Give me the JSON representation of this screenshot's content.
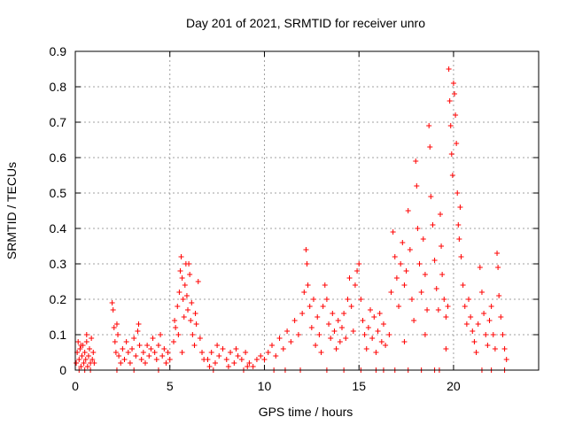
{
  "chart_data": {
    "type": "scatter",
    "title": "Day 201 of 2021, SRMTID for receiver unro",
    "xlabel": "GPS time / hours",
    "ylabel": "SRMTID / TECUs",
    "xlim": [
      0,
      24.5
    ],
    "ylim": [
      0,
      0.9
    ],
    "xticks": [
      0,
      5,
      10,
      15,
      20
    ],
    "xtick_labels": [
      "0",
      "5",
      "10",
      "15",
      "20"
    ],
    "yticks": [
      0,
      0.1,
      0.2,
      0.3,
      0.4,
      0.5,
      0.6,
      0.7,
      0.8,
      0.9
    ],
    "ytick_labels": [
      "0",
      "0.1",
      "0.2",
      "0.3",
      "0.4",
      "0.5",
      "0.6",
      "0.7",
      "0.8",
      "0.9"
    ],
    "grid": true,
    "legend": "none",
    "marker": "plus",
    "series": [
      {
        "name": "SRMTID",
        "color": "#ff0000",
        "points": [
          [
            0.05,
            0.02
          ],
          [
            0.1,
            0.05
          ],
          [
            0.15,
            0.08
          ],
          [
            0.2,
            0.03
          ],
          [
            0.25,
            0.06
          ],
          [
            0.3,
            0.01
          ],
          [
            0.35,
            0.04
          ],
          [
            0.4,
            0.07
          ],
          [
            0.45,
            0.02
          ],
          [
            0.5,
            0.05
          ],
          [
            0.55,
            0.03
          ],
          [
            0.6,
            0.08
          ],
          [
            0.65,
            0.01
          ],
          [
            0.7,
            0.04
          ],
          [
            0.75,
            0.06
          ],
          [
            0.8,
            0.02
          ],
          [
            0.85,
            0.09
          ],
          [
            0.9,
            0.03
          ],
          [
            0.95,
            0.05
          ],
          [
            1.0,
            0.02
          ],
          [
            0.6,
            0.1
          ],
          [
            0.3,
            0.07
          ],
          [
            0.2,
            0.0
          ],
          [
            0.5,
            0.0
          ],
          [
            0.8,
            0.0
          ],
          [
            1.95,
            0.19
          ],
          [
            2.0,
            0.17
          ],
          [
            2.05,
            0.12
          ],
          [
            2.1,
            0.08
          ],
          [
            2.15,
            0.05
          ],
          [
            2.2,
            0.13
          ],
          [
            2.25,
            0.1
          ],
          [
            2.3,
            0.04
          ],
          [
            2.4,
            0.02
          ],
          [
            2.5,
            0.06
          ],
          [
            2.6,
            0.03
          ],
          [
            2.7,
            0.08
          ],
          [
            2.8,
            0.05
          ],
          [
            2.9,
            0.02
          ],
          [
            3.0,
            0.06
          ],
          [
            3.1,
            0.09
          ],
          [
            3.2,
            0.04
          ],
          [
            3.3,
            0.11
          ],
          [
            3.35,
            0.13
          ],
          [
            3.4,
            0.07
          ],
          [
            3.5,
            0.03
          ],
          [
            3.6,
            0.05
          ],
          [
            3.7,
            0.02
          ],
          [
            3.8,
            0.07
          ],
          [
            3.9,
            0.04
          ],
          [
            4.0,
            0.06
          ],
          [
            4.1,
            0.09
          ],
          [
            4.2,
            0.05
          ],
          [
            4.3,
            0.03
          ],
          [
            4.4,
            0.07
          ],
          [
            4.5,
            0.1
          ],
          [
            4.6,
            0.04
          ],
          [
            4.7,
            0.06
          ],
          [
            4.8,
            0.02
          ],
          [
            4.9,
            0.05
          ],
          [
            5.0,
            0.03
          ],
          [
            2.2,
            0.0
          ],
          [
            3.1,
            0.0
          ],
          [
            4.4,
            0.0
          ],
          [
            5.2,
            0.08
          ],
          [
            5.3,
            0.12
          ],
          [
            5.4,
            0.18
          ],
          [
            5.5,
            0.22
          ],
          [
            5.55,
            0.28
          ],
          [
            5.6,
            0.32
          ],
          [
            5.65,
            0.26
          ],
          [
            5.7,
            0.2
          ],
          [
            5.75,
            0.15
          ],
          [
            5.8,
            0.24
          ],
          [
            5.85,
            0.3
          ],
          [
            5.9,
            0.21
          ],
          [
            5.95,
            0.17
          ],
          [
            6.0,
            0.3
          ],
          [
            6.05,
            0.27
          ],
          [
            6.1,
            0.14
          ],
          [
            6.2,
            0.1
          ],
          [
            6.3,
            0.07
          ],
          [
            6.4,
            0.13
          ],
          [
            6.5,
            0.25
          ],
          [
            6.6,
            0.09
          ],
          [
            6.7,
            0.05
          ],
          [
            6.8,
            0.03
          ],
          [
            5.45,
            0.1
          ],
          [
            5.65,
            0.05
          ],
          [
            6.15,
            0.19
          ],
          [
            6.35,
            0.16
          ],
          [
            5.25,
            0.14
          ],
          [
            7.0,
            0.03
          ],
          [
            7.2,
            0.05
          ],
          [
            7.4,
            0.02
          ],
          [
            7.6,
            0.04
          ],
          [
            7.8,
            0.06
          ],
          [
            8.0,
            0.03
          ],
          [
            8.2,
            0.05
          ],
          [
            8.4,
            0.02
          ],
          [
            8.6,
            0.04
          ],
          [
            8.8,
            0.03
          ],
          [
            9.0,
            0.05
          ],
          [
            9.2,
            0.02
          ],
          [
            9.4,
            0.01
          ],
          [
            9.6,
            0.03
          ],
          [
            9.8,
            0.04
          ],
          [
            7.1,
            0.01
          ],
          [
            7.5,
            0.07
          ],
          [
            8.1,
            0.01
          ],
          [
            8.5,
            0.06
          ],
          [
            9.1,
            0.01
          ],
          [
            7.3,
            0.0
          ],
          [
            8.9,
            0.0
          ],
          [
            10.0,
            0.03
          ],
          [
            10.2,
            0.05
          ],
          [
            10.4,
            0.07
          ],
          [
            10.6,
            0.04
          ],
          [
            10.8,
            0.09
          ],
          [
            11.0,
            0.06
          ],
          [
            11.2,
            0.11
          ],
          [
            11.4,
            0.08
          ],
          [
            11.6,
            0.14
          ],
          [
            11.8,
            0.1
          ],
          [
            12.0,
            0.16
          ],
          [
            12.1,
            0.22
          ],
          [
            12.2,
            0.34
          ],
          [
            12.25,
            0.3
          ],
          [
            12.3,
            0.24
          ],
          [
            12.4,
            0.18
          ],
          [
            12.5,
            0.12
          ],
          [
            12.6,
            0.2
          ],
          [
            12.7,
            0.07
          ],
          [
            12.8,
            0.15
          ],
          [
            12.9,
            0.1
          ],
          [
            13.0,
            0.05
          ],
          [
            13.1,
            0.18
          ],
          [
            13.2,
            0.24
          ],
          [
            13.3,
            0.2
          ],
          [
            13.4,
            0.13
          ],
          [
            13.5,
            0.09
          ],
          [
            13.6,
            0.16
          ],
          [
            13.7,
            0.11
          ],
          [
            13.8,
            0.06
          ],
          [
            13.9,
            0.14
          ],
          [
            14.0,
            0.08
          ],
          [
            10.5,
            0.0
          ],
          [
            11.1,
            0.0
          ],
          [
            11.9,
            0.0
          ],
          [
            13.3,
            0.0
          ],
          [
            14.1,
            0.12
          ],
          [
            14.2,
            0.16
          ],
          [
            14.3,
            0.09
          ],
          [
            14.4,
            0.2
          ],
          [
            14.5,
            0.26
          ],
          [
            14.6,
            0.18
          ],
          [
            14.7,
            0.11
          ],
          [
            14.8,
            0.24
          ],
          [
            14.9,
            0.28
          ],
          [
            15.0,
            0.3
          ],
          [
            15.1,
            0.2
          ],
          [
            15.2,
            0.14
          ],
          [
            15.3,
            0.1
          ],
          [
            15.4,
            0.06
          ],
          [
            15.5,
            0.12
          ],
          [
            15.6,
            0.17
          ],
          [
            15.7,
            0.09
          ],
          [
            15.8,
            0.15
          ],
          [
            15.9,
            0.05
          ],
          [
            16.0,
            0.11
          ],
          [
            16.1,
            0.16
          ],
          [
            16.2,
            0.08
          ],
          [
            16.3,
            0.13
          ],
          [
            16.4,
            0.07
          ],
          [
            14.2,
            0.0
          ],
          [
            15.1,
            0.0
          ],
          [
            15.9,
            0.0
          ],
          [
            16.3,
            0.0
          ],
          [
            16.6,
            0.1
          ],
          [
            16.7,
            0.22
          ],
          [
            16.8,
            0.39
          ],
          [
            16.9,
            0.32
          ],
          [
            17.0,
            0.26
          ],
          [
            17.1,
            0.18
          ],
          [
            17.2,
            0.3
          ],
          [
            17.3,
            0.36
          ],
          [
            17.4,
            0.24
          ],
          [
            17.5,
            0.28
          ],
          [
            17.6,
            0.45
          ],
          [
            17.7,
            0.34
          ],
          [
            17.8,
            0.2
          ],
          [
            17.9,
            0.14
          ],
          [
            18.0,
            0.59
          ],
          [
            18.05,
            0.52
          ],
          [
            18.1,
            0.4
          ],
          [
            18.2,
            0.3
          ],
          [
            18.3,
            0.22
          ],
          [
            18.4,
            0.37
          ],
          [
            18.5,
            0.27
          ],
          [
            18.6,
            0.17
          ],
          [
            18.7,
            0.69
          ],
          [
            18.75,
            0.63
          ],
          [
            18.8,
            0.49
          ],
          [
            18.9,
            0.41
          ],
          [
            19.0,
            0.31
          ],
          [
            19.1,
            0.23
          ],
          [
            19.2,
            0.17
          ],
          [
            19.3,
            0.44
          ],
          [
            19.35,
            0.35
          ],
          [
            19.4,
            0.27
          ],
          [
            19.5,
            0.2
          ],
          [
            19.6,
            0.15
          ],
          [
            19.7,
            0.18
          ],
          [
            19.75,
            0.85
          ],
          [
            19.8,
            0.76
          ],
          [
            19.85,
            0.69
          ],
          [
            19.9,
            0.61
          ],
          [
            19.95,
            0.55
          ],
          [
            20.0,
            0.81
          ],
          [
            20.05,
            0.78
          ],
          [
            20.1,
            0.72
          ],
          [
            20.15,
            0.64
          ],
          [
            20.2,
            0.5
          ],
          [
            20.25,
            0.41
          ],
          [
            20.3,
            0.37
          ],
          [
            20.35,
            0.46
          ],
          [
            20.4,
            0.32
          ],
          [
            20.5,
            0.24
          ],
          [
            20.6,
            0.18
          ],
          [
            20.7,
            0.13
          ],
          [
            16.9,
            0.0
          ],
          [
            17.6,
            0.0
          ],
          [
            18.3,
            0.0
          ],
          [
            19.0,
            0.0
          ],
          [
            19.25,
            0.0
          ],
          [
            17.4,
            0.08
          ],
          [
            18.5,
            0.1
          ],
          [
            19.6,
            0.06
          ],
          [
            20.8,
            0.2
          ],
          [
            20.9,
            0.15
          ],
          [
            21.0,
            0.11
          ],
          [
            21.1,
            0.08
          ],
          [
            21.2,
            0.05
          ],
          [
            21.3,
            0.13
          ],
          [
            21.4,
            0.29
          ],
          [
            21.5,
            0.22
          ],
          [
            21.6,
            0.16
          ],
          [
            21.7,
            0.1
          ],
          [
            21.8,
            0.07
          ],
          [
            21.9,
            0.14
          ],
          [
            22.0,
            0.18
          ],
          [
            22.1,
            0.1
          ],
          [
            22.2,
            0.06
          ],
          [
            22.3,
            0.33
          ],
          [
            22.35,
            0.29
          ],
          [
            22.4,
            0.21
          ],
          [
            22.5,
            0.15
          ],
          [
            22.6,
            0.1
          ],
          [
            22.7,
            0.06
          ],
          [
            22.8,
            0.03
          ],
          [
            21.5,
            0.0
          ],
          [
            22.0,
            0.0
          ],
          [
            22.7,
            0.0
          ]
        ]
      }
    ]
  }
}
